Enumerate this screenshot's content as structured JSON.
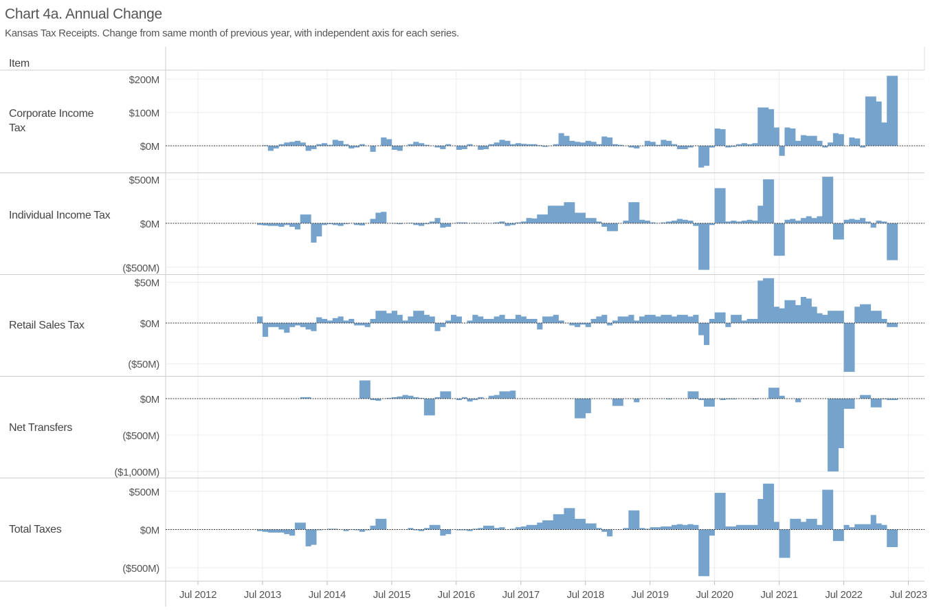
{
  "chart_data": {
    "type": "bar",
    "title": "Chart 4a. Annual Change",
    "subtitle": "Kansas Tax Receipts. Change from same month of previous year, with independent axis for each series.",
    "row_header": "Item",
    "color": "#76a3cb",
    "grid": true,
    "x": [
      "2013-06",
      "2013-07",
      "2013-08",
      "2013-09",
      "2013-10",
      "2013-11",
      "2013-12",
      "2014-01",
      "2014-02",
      "2014-03",
      "2014-04",
      "2014-05",
      "2014-06",
      "2014-07",
      "2014-08",
      "2014-09",
      "2014-10",
      "2014-11",
      "2014-12",
      "2015-01",
      "2015-02",
      "2015-03",
      "2015-04",
      "2015-05",
      "2015-06",
      "2015-07",
      "2015-08",
      "2015-09",
      "2015-10",
      "2015-11",
      "2015-12",
      "2016-01",
      "2016-02",
      "2016-03",
      "2016-04",
      "2016-05",
      "2016-06",
      "2016-07",
      "2016-08",
      "2016-09",
      "2016-10",
      "2016-11",
      "2016-12",
      "2017-01",
      "2017-02",
      "2017-03",
      "2017-04",
      "2017-05",
      "2017-06",
      "2017-07",
      "2017-08",
      "2017-09",
      "2017-10",
      "2017-11",
      "2017-12",
      "2018-01",
      "2018-02",
      "2018-03",
      "2018-04",
      "2018-05",
      "2018-06",
      "2018-07",
      "2018-08",
      "2018-09",
      "2018-10",
      "2018-11",
      "2018-12",
      "2019-01",
      "2019-02",
      "2019-03",
      "2019-04",
      "2019-05",
      "2019-06",
      "2019-07",
      "2019-08",
      "2019-09",
      "2019-10",
      "2019-11",
      "2019-12",
      "2020-01",
      "2020-02",
      "2020-03",
      "2020-04",
      "2020-05",
      "2020-06",
      "2020-07",
      "2020-08",
      "2020-09",
      "2020-10",
      "2020-11",
      "2020-12",
      "2021-01",
      "2021-02",
      "2021-03",
      "2021-04",
      "2021-05",
      "2021-06",
      "2021-07",
      "2021-08",
      "2021-09",
      "2021-10",
      "2021-11",
      "2021-12",
      "2022-01",
      "2022-02",
      "2022-03",
      "2022-04",
      "2022-05",
      "2022-06",
      "2022-07",
      "2022-08",
      "2022-09",
      "2022-10",
      "2022-11",
      "2022-12",
      "2023-01",
      "2023-02",
      "2023-03",
      "2023-04"
    ],
    "xlim": [
      "2012-01",
      "2023-10"
    ],
    "xticks": [
      {
        "value": "2012-07",
        "label": "Jul 2012"
      },
      {
        "value": "2013-07",
        "label": "Jul 2013"
      },
      {
        "value": "2014-07",
        "label": "Jul 2014"
      },
      {
        "value": "2015-07",
        "label": "Jul 2015"
      },
      {
        "value": "2016-07",
        "label": "Jul 2016"
      },
      {
        "value": "2017-07",
        "label": "Jul 2017"
      },
      {
        "value": "2018-07",
        "label": "Jul 2018"
      },
      {
        "value": "2019-07",
        "label": "Jul 2019"
      },
      {
        "value": "2020-07",
        "label": "Jul 2020"
      },
      {
        "value": "2021-07",
        "label": "Jul 2021"
      },
      {
        "value": "2022-07",
        "label": "Jul 2022"
      },
      {
        "value": "2023-07",
        "label": "Jul 2023"
      }
    ],
    "series": [
      {
        "name": "Corporate Income Tax",
        "ylim": [
          -80,
          225
        ],
        "yticks": [
          {
            "value": 0,
            "label": "$0M"
          },
          {
            "value": 100,
            "label": "$100M"
          },
          {
            "value": 200,
            "label": "$200M"
          }
        ],
        "values": [
          0,
          2,
          -15,
          -8,
          5,
          10,
          12,
          15,
          10,
          -15,
          -10,
          5,
          8,
          3,
          18,
          15,
          5,
          -8,
          -5,
          5,
          0,
          -18,
          0,
          25,
          20,
          -12,
          -15,
          0,
          5,
          12,
          8,
          3,
          0,
          -5,
          -10,
          5,
          0,
          -12,
          -10,
          5,
          0,
          -12,
          -10,
          5,
          10,
          18,
          15,
          5,
          8,
          6,
          5,
          5,
          2,
          -3,
          0,
          5,
          38,
          30,
          15,
          12,
          10,
          15,
          12,
          5,
          28,
          25,
          5,
          3,
          0,
          -5,
          -8,
          0,
          15,
          12,
          3,
          18,
          15,
          5,
          -10,
          -10,
          -5,
          0,
          -65,
          -60,
          -5,
          52,
          50,
          -5,
          -3,
          5,
          8,
          5,
          8,
          115,
          115,
          110,
          55,
          -30,
          55,
          52,
          15,
          32,
          30,
          30,
          15,
          -5,
          10,
          38,
          35,
          0,
          25,
          22,
          -5,
          148,
          148,
          133,
          70,
          210,
          210
        ]
      },
      {
        "name": "Individual Income Tax",
        "ylim": [
          -580,
          570
        ],
        "yticks": [
          {
            "value": -500,
            "label": "($500M)"
          },
          {
            "value": 0,
            "label": "$0M"
          },
          {
            "value": 500,
            "label": "$500M"
          }
        ],
        "values": [
          -20,
          -25,
          -30,
          -30,
          -40,
          -20,
          -40,
          -70,
          100,
          100,
          -220,
          -150,
          -20,
          -10,
          -20,
          -30,
          -10,
          0,
          -20,
          -25,
          0,
          50,
          120,
          130,
          0,
          -5,
          -10,
          0,
          5,
          -20,
          -30,
          -10,
          20,
          60,
          -50,
          -40,
          0,
          10,
          10,
          0,
          5,
          0,
          0,
          0,
          10,
          20,
          -30,
          -20,
          10,
          20,
          60,
          55,
          100,
          100,
          200,
          200,
          200,
          240,
          240,
          120,
          120,
          60,
          60,
          20,
          -40,
          -90,
          -90,
          0,
          30,
          240,
          240,
          40,
          30,
          10,
          0,
          10,
          20,
          30,
          50,
          40,
          30,
          -30,
          -530,
          -530,
          -20,
          400,
          400,
          20,
          30,
          20,
          30,
          40,
          30,
          200,
          500,
          500,
          -370,
          -370,
          40,
          50,
          30,
          60,
          80,
          60,
          80,
          530,
          530,
          -185,
          -185,
          40,
          50,
          40,
          60,
          20,
          -50,
          30,
          20,
          -420,
          -420
        ]
      },
      {
        "name": "Retail Sales Tax",
        "ylim": [
          -65,
          59
        ],
        "yticks": [
          {
            "value": -50,
            "label": "($50M)"
          },
          {
            "value": 0,
            "label": "$0M"
          },
          {
            "value": 50,
            "label": "$50M"
          }
        ],
        "values": [
          8,
          -17,
          -5,
          -5,
          -8,
          -12,
          -5,
          -3,
          -5,
          -8,
          -10,
          7,
          5,
          3,
          6,
          8,
          3,
          5,
          -3,
          -3,
          -5,
          5,
          15,
          15,
          12,
          15,
          10,
          3,
          8,
          15,
          15,
          10,
          8,
          -10,
          -5,
          3,
          10,
          8,
          0,
          3,
          10,
          8,
          5,
          5,
          8,
          10,
          5,
          5,
          10,
          8,
          5,
          5,
          -8,
          8,
          8,
          10,
          3,
          0,
          -3,
          -5,
          -2,
          -5,
          5,
          8,
          10,
          -3,
          3,
          8,
          8,
          10,
          3,
          8,
          10,
          10,
          8,
          10,
          10,
          8,
          10,
          10,
          8,
          10,
          -15,
          -27,
          5,
          13,
          13,
          -5,
          10,
          10,
          3,
          5,
          5,
          52,
          55,
          55,
          20,
          18,
          28,
          28,
          22,
          32,
          30,
          20,
          12,
          10,
          15,
          15,
          15,
          -60,
          -60,
          20,
          23,
          23,
          15,
          15,
          5,
          -5,
          -5
        ]
      },
      {
        "name": "Net Transfers",
        "ylim": [
          -1085,
          302
        ],
        "yticks": [
          {
            "value": -1000,
            "label": "($1,000M)"
          },
          {
            "value": -500,
            "label": "($500M)"
          },
          {
            "value": 0,
            "label": "$0M"
          }
        ],
        "values": [
          0,
          0,
          0,
          0,
          0,
          -5,
          0,
          0,
          20,
          20,
          0,
          0,
          0,
          0,
          0,
          0,
          0,
          0,
          0,
          250,
          250,
          -20,
          -30,
          0,
          10,
          20,
          30,
          50,
          40,
          20,
          10,
          -230,
          -230,
          20,
          100,
          100,
          0,
          -20,
          20,
          -40,
          -20,
          20,
          0,
          40,
          50,
          100,
          100,
          110,
          0,
          0,
          0,
          0,
          0,
          0,
          0,
          0,
          0,
          0,
          0,
          -270,
          -270,
          -200,
          0,
          0,
          0,
          0,
          -100,
          -100,
          0,
          0,
          -50,
          0,
          0,
          0,
          0,
          0,
          -10,
          0,
          0,
          0,
          100,
          100,
          -20,
          -110,
          -110,
          0,
          -20,
          -10,
          -10,
          0,
          0,
          0,
          -10,
          0,
          0,
          150,
          150,
          40,
          0,
          0,
          -50,
          0,
          0,
          0,
          0,
          0,
          -1000,
          -1000,
          -680,
          -140,
          -140,
          0,
          50,
          50,
          -120,
          -120,
          -10,
          -20,
          -20
        ]
      },
      {
        "name": "Total Taxes",
        "ylim": [
          -670,
          660
        ],
        "yticks": [
          {
            "value": -500,
            "label": "($500M)"
          },
          {
            "value": 0,
            "label": "$0M"
          },
          {
            "value": 500,
            "label": "$500M"
          }
        ],
        "values": [
          -20,
          -30,
          -40,
          -40,
          -40,
          -60,
          -80,
          90,
          90,
          -220,
          -200,
          -10,
          0,
          10,
          10,
          0,
          -20,
          -5,
          -10,
          -30,
          -10,
          50,
          140,
          140,
          0,
          0,
          0,
          0,
          20,
          -10,
          -20,
          20,
          60,
          60,
          -80,
          -60,
          0,
          -10,
          -10,
          -20,
          10,
          20,
          50,
          50,
          20,
          30,
          0,
          10,
          30,
          40,
          60,
          60,
          90,
          120,
          120,
          200,
          200,
          280,
          280,
          140,
          140,
          80,
          80,
          20,
          -30,
          -90,
          0,
          0,
          20,
          250,
          250,
          20,
          10,
          30,
          30,
          40,
          40,
          60,
          70,
          60,
          70,
          60,
          -610,
          -610,
          -80,
          480,
          480,
          40,
          40,
          60,
          60,
          60,
          60,
          400,
          600,
          600,
          100,
          -370,
          -370,
          140,
          140,
          100,
          140,
          140,
          60,
          520,
          520,
          -150,
          -150,
          60,
          30,
          70,
          70,
          70,
          190,
          80,
          60,
          -230,
          -230
        ]
      }
    ]
  }
}
